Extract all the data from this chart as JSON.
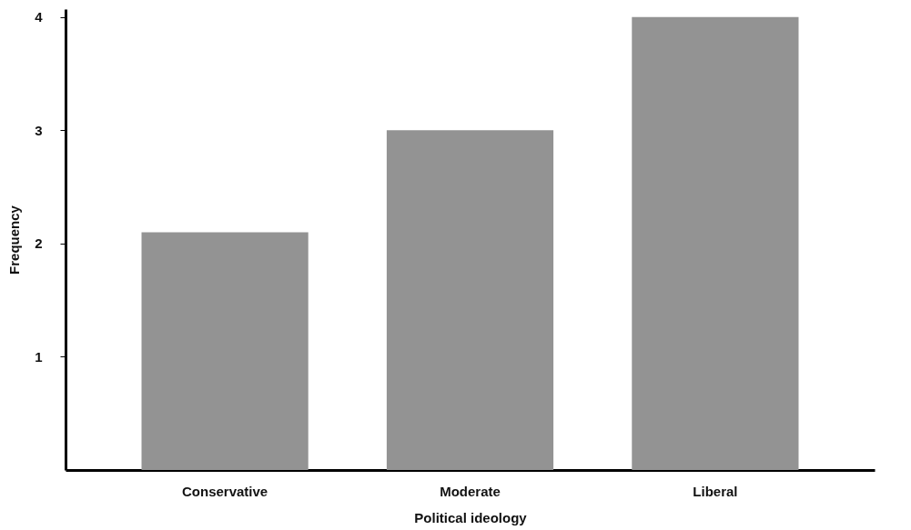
{
  "chart_data": {
    "type": "bar",
    "xlabel": "Political ideology",
    "ylabel": "Frequency",
    "categories": [
      "Conservative",
      "Moderate",
      "Liberal"
    ],
    "values": [
      2.1,
      3,
      4
    ],
    "color": "#939393",
    "ylim": [
      0,
      4.07
    ],
    "yticks": [
      1,
      2,
      3,
      4
    ],
    "grid": false
  }
}
